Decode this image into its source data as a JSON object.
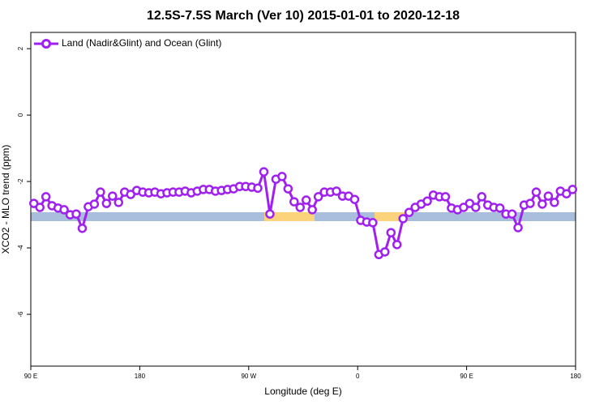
{
  "chart_data": {
    "type": "line",
    "title": "12.5S-7.5S March (Ver 10)   2015-01-01 to 2020-12-18",
    "x_label": "Longitude (deg E)",
    "y_label": "XCO2 - MLO trend (ppm)",
    "xlim": [
      90,
      540
    ],
    "xticks": [
      {
        "value": 90,
        "label": "90 E"
      },
      180,
      {
        "value": 270,
        "label": "90 W"
      },
      {
        "value": 360,
        "label": "0"
      },
      {
        "value": 450,
        "label": "90 E"
      },
      {
        "value": 540,
        "label": "180"
      }
    ],
    "ylim": [
      -7.56,
      2.49
    ],
    "yticks": [
      -6,
      -4,
      -2,
      0,
      2
    ],
    "legend": "top-left",
    "x": [
      92.5,
      97.5,
      102.5,
      107.5,
      112.5,
      117.5,
      122.5,
      127.5,
      132.5,
      137.5,
      142.5,
      147.5,
      152.5,
      157.5,
      162.5,
      167.5,
      172.5,
      177.5,
      182.5,
      187.5,
      192.5,
      197.5,
      202.5,
      207.5,
      212.5,
      217.5,
      222.5,
      227.5,
      232.5,
      237.5,
      242.5,
      247.5,
      252.5,
      257.5,
      262.5,
      267.5,
      272.5,
      277.5,
      282.5,
      287.5,
      292.5,
      297.5,
      302.5,
      307.5,
      312.5,
      317.5,
      322.5,
      327.5,
      332.5,
      337.5,
      342.5,
      347.5,
      352.5,
      357.5,
      362.5,
      367.5,
      372.5,
      377.5,
      382.5,
      387.5,
      392.5,
      397.5,
      402.5,
      407.5,
      412.5,
      417.5,
      422.5,
      427.5,
      432.5,
      437.5,
      442.5,
      447.5,
      452.5,
      457.5,
      462.5,
      467.5,
      472.5,
      477.5,
      482.5,
      487.5,
      492.5,
      497.5,
      502.5,
      507.5,
      512.5,
      517.5,
      522.5,
      527.5,
      532.5,
      537.5
    ],
    "series": [
      {
        "name": "Land (Nadir&Glint) and Ocean (Glint)",
        "color": "#a020f0",
        "values": [
          -2.66,
          -2.78,
          -2.46,
          -2.73,
          -2.8,
          -2.85,
          -3.0,
          -2.98,
          -3.41,
          -2.76,
          -2.68,
          -2.32,
          -2.66,
          -2.44,
          -2.63,
          -2.32,
          -2.39,
          -2.27,
          -2.32,
          -2.34,
          -2.32,
          -2.37,
          -2.34,
          -2.32,
          -2.32,
          -2.29,
          -2.34,
          -2.29,
          -2.24,
          -2.24,
          -2.29,
          -2.27,
          -2.24,
          -2.22,
          -2.15,
          -2.15,
          -2.17,
          -2.2,
          -1.71,
          -2.98,
          -1.93,
          -1.85,
          -2.22,
          -2.61,
          -2.78,
          -2.56,
          -2.85,
          -2.46,
          -2.32,
          -2.32,
          -2.29,
          -2.44,
          -2.44,
          -2.54,
          -3.17,
          -3.22,
          -3.24,
          -4.2,
          -4.12,
          -3.54,
          -3.9,
          -3.12,
          -2.93,
          -2.78,
          -2.68,
          -2.59,
          -2.41,
          -2.46,
          -2.46,
          -2.8,
          -2.85,
          -2.78,
          -2.66,
          -2.78,
          -2.46,
          -2.71,
          -2.78,
          -2.8,
          -2.98,
          -2.98,
          -3.39,
          -2.71,
          -2.66,
          -2.32,
          -2.68,
          -2.44,
          -2.63,
          -2.29,
          -2.37,
          -2.24
        ]
      }
    ]
  }
}
